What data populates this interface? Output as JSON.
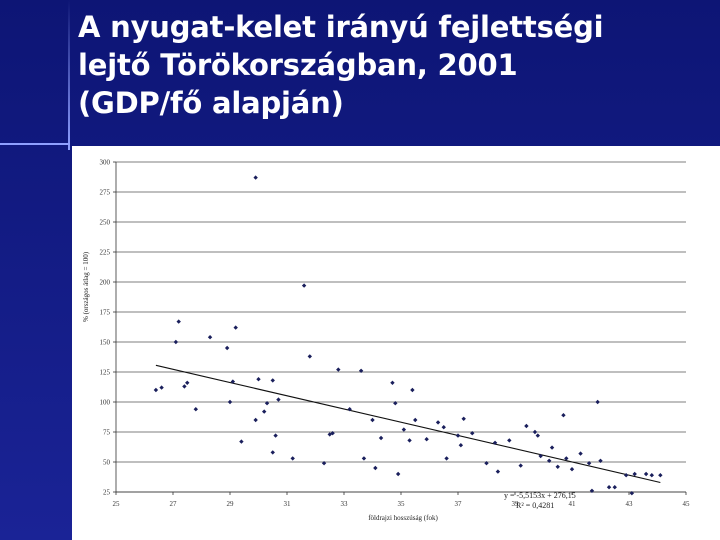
{
  "slide": {
    "title_lines": [
      "A nyugat-kelet irányú fejlettségi",
      "lejtő Törökországban, 2001",
      "(GDP/fő alapján)"
    ],
    "background_color": "#0f1a7a",
    "title_color": "#ffffff"
  },
  "chart_data": {
    "type": "scatter",
    "title": "",
    "xlabel": "földrajzi hosszúság (fok)",
    "ylabel": "% (országos átlag = 100)",
    "xlim": [
      25,
      45
    ],
    "ylim": [
      25,
      300
    ],
    "x_ticks": [
      "25",
      "27",
      "29",
      "31",
      "33",
      "35",
      "37",
      "39",
      "41",
      "43",
      "45"
    ],
    "y_ticks": [
      "300",
      "275",
      "250",
      "225",
      "200",
      "175",
      "150",
      "125",
      "100",
      "75",
      "50",
      "25"
    ],
    "grid": "horizontal",
    "points": [
      [
        26.4,
        110
      ],
      [
        26.6,
        112
      ],
      [
        27.1,
        150
      ],
      [
        27.2,
        167
      ],
      [
        27.4,
        113
      ],
      [
        27.5,
        116
      ],
      [
        27.8,
        94
      ],
      [
        28.3,
        154
      ],
      [
        28.9,
        145
      ],
      [
        29.0,
        100
      ],
      [
        29.1,
        117
      ],
      [
        29.2,
        162
      ],
      [
        29.4,
        67
      ],
      [
        29.9,
        287
      ],
      [
        29.9,
        85
      ],
      [
        30.0,
        119
      ],
      [
        30.2,
        92
      ],
      [
        30.3,
        99
      ],
      [
        30.5,
        118
      ],
      [
        30.5,
        58
      ],
      [
        30.6,
        72
      ],
      [
        30.7,
        102
      ],
      [
        31.2,
        53
      ],
      [
        31.6,
        197
      ],
      [
        31.8,
        138
      ],
      [
        32.3,
        49
      ],
      [
        32.5,
        73
      ],
      [
        32.6,
        74
      ],
      [
        32.8,
        127
      ],
      [
        33.2,
        94
      ],
      [
        33.6,
        126
      ],
      [
        33.7,
        53
      ],
      [
        34.0,
        85
      ],
      [
        34.1,
        45
      ],
      [
        34.3,
        70
      ],
      [
        34.7,
        116
      ],
      [
        34.8,
        99
      ],
      [
        34.9,
        40
      ],
      [
        35.1,
        77
      ],
      [
        35.3,
        68
      ],
      [
        35.4,
        110
      ],
      [
        35.5,
        85
      ],
      [
        35.9,
        69
      ],
      [
        36.3,
        83
      ],
      [
        36.5,
        79
      ],
      [
        36.6,
        53
      ],
      [
        37.0,
        72
      ],
      [
        37.1,
        64
      ],
      [
        37.2,
        86
      ],
      [
        37.5,
        74
      ],
      [
        38.0,
        49
      ],
      [
        38.3,
        66
      ],
      [
        38.4,
        42
      ],
      [
        38.8,
        68
      ],
      [
        39.2,
        47
      ],
      [
        39.4,
        80
      ],
      [
        39.7,
        75
      ],
      [
        39.8,
        72
      ],
      [
        39.9,
        55
      ],
      [
        40.2,
        51
      ],
      [
        40.3,
        62
      ],
      [
        40.5,
        46
      ],
      [
        40.7,
        89
      ],
      [
        40.8,
        53
      ],
      [
        41.0,
        44
      ],
      [
        41.3,
        57
      ],
      [
        41.6,
        49
      ],
      [
        41.7,
        26
      ],
      [
        41.9,
        100
      ],
      [
        42.0,
        51
      ],
      [
        42.3,
        29
      ],
      [
        42.5,
        29
      ],
      [
        42.9,
        39
      ],
      [
        43.1,
        24
      ],
      [
        43.2,
        40
      ],
      [
        43.6,
        40
      ],
      [
        43.8,
        39
      ],
      [
        44.1,
        39
      ]
    ],
    "trendline": {
      "equation": "y = -5,5153x + 276,15",
      "r_squared": "R² = 0,4281"
    }
  }
}
